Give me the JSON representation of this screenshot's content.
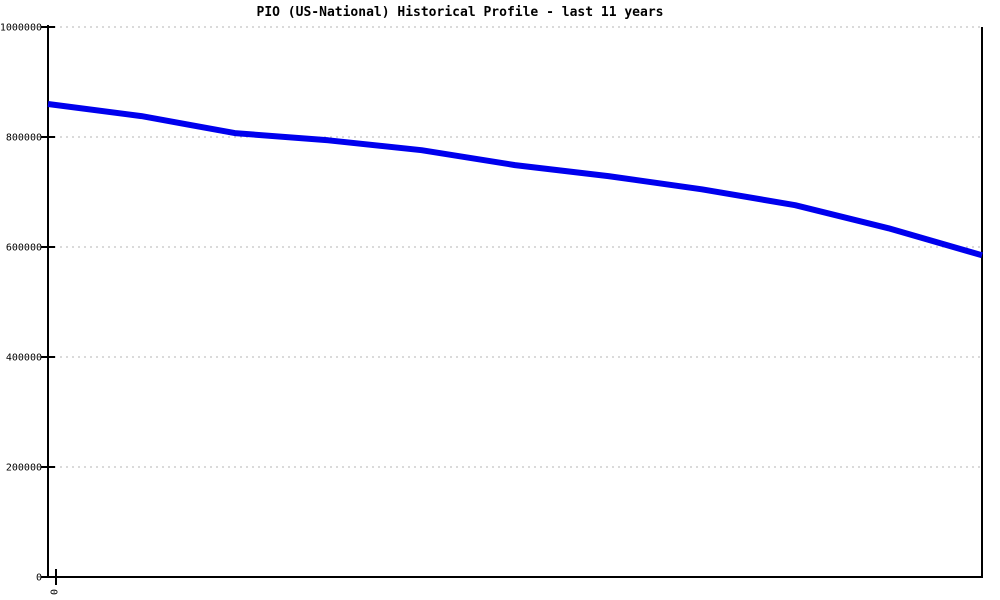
{
  "chart_data": {
    "type": "line",
    "title": "PIO (US-National) Historical Profile - last 11 years",
    "xlabel": "",
    "ylabel": "",
    "x": [
      0,
      1,
      2,
      3,
      4,
      5,
      6,
      7,
      8,
      9,
      10
    ],
    "values": [
      860000,
      838000,
      807000,
      794000,
      776000,
      749000,
      729000,
      705000,
      676000,
      634000,
      585000
    ],
    "series_name": "PIO (US-National)",
    "ylim": [
      0,
      1000000
    ],
    "yticks": [
      1000000,
      800000,
      600000,
      400000,
      200000,
      0
    ],
    "ytick_labels": [
      "1000000",
      "800000",
      "600000",
      "400000",
      "200000",
      "0"
    ],
    "xtick": {
      "label": "0",
      "rotated": true
    },
    "grid": {
      "horizontal": true,
      "vertical": false,
      "style": "dotted"
    },
    "legend": "none",
    "colors": {
      "line": "#0000ee",
      "grid": "#b4b4b4",
      "axis": "#000000",
      "text": "#000000",
      "background": "#ffffff"
    }
  }
}
